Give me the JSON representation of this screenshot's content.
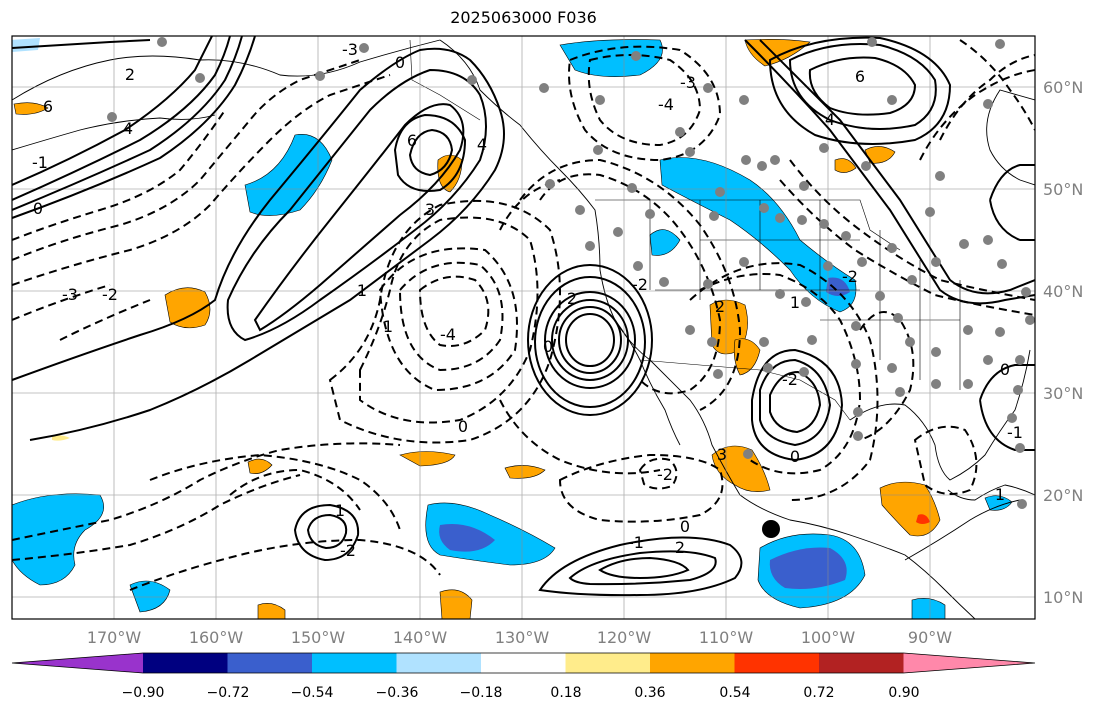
{
  "title": "2025063000 F036",
  "longitude_labels": [
    "170°W",
    "160°W",
    "150°W",
    "140°W",
    "130°W",
    "120°W",
    "110°W",
    "100°W",
    "90°W"
  ],
  "latitude_labels": [
    "60°N",
    "50°N",
    "40°N",
    "30°N",
    "20°N",
    "10°N"
  ],
  "colorbar": {
    "tick_labels": [
      "−0.90",
      "−0.72",
      "−0.54",
      "−0.36",
      "−0.18",
      "0.18",
      "0.36",
      "0.54",
      "0.72",
      "0.90"
    ],
    "colors": [
      "#9933cc",
      "#000080",
      "#3a5fcd",
      "#00bfff",
      "#b0e2ff",
      "#ffffff",
      "#ffec8b",
      "#ffa500",
      "#ff3300",
      "#b22222",
      "#ff88aa"
    ]
  },
  "contour_labels": [
    "6",
    "4",
    "2",
    "0",
    "-3",
    "-1",
    "-2",
    "-4",
    "3",
    "1",
    "6",
    "4",
    "0",
    "-3",
    "-2",
    "1",
    "2",
    "0",
    "-2",
    "-1",
    "1",
    "2",
    "0",
    "-2",
    "6",
    "4",
    "-2",
    "0",
    "3",
    "2",
    "1",
    "-2",
    "-1",
    "0",
    "1",
    "-3",
    "-4",
    "0"
  ],
  "marker": "station-dot"
}
